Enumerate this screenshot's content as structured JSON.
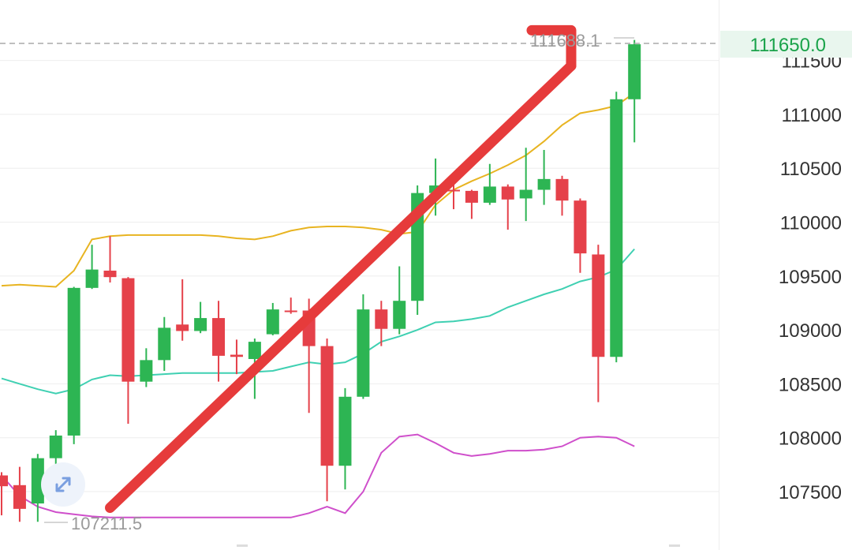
{
  "chart_data": {
    "type": "candlestick",
    "y_ticks": [
      107500,
      108000,
      108500,
      109000,
      109500,
      110000,
      110500,
      111000,
      111500
    ],
    "y_tick_labels": [
      "107500",
      "108000",
      "108500",
      "109000",
      "109500",
      "110000",
      "110500",
      "111000",
      "111500"
    ],
    "ylim": [
      107000,
      112000
    ],
    "current_price": 111650.0,
    "current_price_label": "111650.0",
    "high_marker": 111688.1,
    "high_marker_label": "111688.1",
    "low_marker": 107211.5,
    "low_marker_label": "107211.5",
    "grid": true,
    "colors": {
      "up": "#2db553",
      "down": "#e5414a",
      "upper_band": "#e8b421",
      "middle_band": "#3fd0b2",
      "lower_band": "#cf4fcb",
      "arrow": "#e63b3b",
      "current_label": "#1aa34a"
    },
    "candles": [
      {
        "open": 107650,
        "close": 107550,
        "high": 107680,
        "low": 107280,
        "dir": "down"
      },
      {
        "open": 107560,
        "close": 107340,
        "high": 107730,
        "low": 107220,
        "dir": "down"
      },
      {
        "open": 107390,
        "close": 107810,
        "high": 107850,
        "low": 107220,
        "dir": "up"
      },
      {
        "open": 107810,
        "close": 108020,
        "high": 108070,
        "low": 107530,
        "dir": "up"
      },
      {
        "open": 108020,
        "close": 109390,
        "high": 109400,
        "low": 107940,
        "dir": "up"
      },
      {
        "open": 109390,
        "close": 109560,
        "high": 109790,
        "low": 109380,
        "dir": "up"
      },
      {
        "open": 109550,
        "close": 109490,
        "high": 109870,
        "low": 109440,
        "dir": "down"
      },
      {
        "open": 109480,
        "close": 108520,
        "high": 109490,
        "low": 108130,
        "dir": "down"
      },
      {
        "open": 108520,
        "close": 108720,
        "high": 108830,
        "low": 108470,
        "dir": "up"
      },
      {
        "open": 108720,
        "close": 109020,
        "high": 109120,
        "low": 108620,
        "dir": "up"
      },
      {
        "open": 109050,
        "close": 108990,
        "high": 109470,
        "low": 108900,
        "dir": "down"
      },
      {
        "open": 108990,
        "close": 109110,
        "high": 109260,
        "low": 108970,
        "dir": "up"
      },
      {
        "open": 109110,
        "close": 108760,
        "high": 109270,
        "low": 108520,
        "dir": "down"
      },
      {
        "open": 108770,
        "close": 108750,
        "high": 108910,
        "low": 108590,
        "dir": "down"
      },
      {
        "open": 108730,
        "close": 108890,
        "high": 108920,
        "low": 108360,
        "dir": "up"
      },
      {
        "open": 108960,
        "close": 109190,
        "high": 109250,
        "low": 108950,
        "dir": "up"
      },
      {
        "open": 109180,
        "close": 109170,
        "high": 109300,
        "low": 109150,
        "dir": "down"
      },
      {
        "open": 109180,
        "close": 108850,
        "high": 109290,
        "low": 108230,
        "dir": "down"
      },
      {
        "open": 108850,
        "close": 107740,
        "high": 108920,
        "low": 107410,
        "dir": "down"
      },
      {
        "open": 107740,
        "close": 108380,
        "high": 108460,
        "low": 107520,
        "dir": "up"
      },
      {
        "open": 108380,
        "close": 109190,
        "high": 109330,
        "low": 108360,
        "dir": "up"
      },
      {
        "open": 109190,
        "close": 109010,
        "high": 109270,
        "low": 108850,
        "dir": "down"
      },
      {
        "open": 109010,
        "close": 109270,
        "high": 109590,
        "low": 108960,
        "dir": "up"
      },
      {
        "open": 109270,
        "close": 110270,
        "high": 110340,
        "low": 109140,
        "dir": "up"
      },
      {
        "open": 110270,
        "close": 110340,
        "high": 110590,
        "low": 110060,
        "dir": "up"
      },
      {
        "open": 110300,
        "close": 110290,
        "high": 110400,
        "low": 110120,
        "dir": "down"
      },
      {
        "open": 110290,
        "close": 110180,
        "high": 110300,
        "low": 110030,
        "dir": "down"
      },
      {
        "open": 110180,
        "close": 110330,
        "high": 110540,
        "low": 110160,
        "dir": "up"
      },
      {
        "open": 110330,
        "close": 110210,
        "high": 110350,
        "low": 109930,
        "dir": "down"
      },
      {
        "open": 110220,
        "close": 110300,
        "high": 110690,
        "low": 110010,
        "dir": "up"
      },
      {
        "open": 110300,
        "close": 110400,
        "high": 110670,
        "low": 110160,
        "dir": "up"
      },
      {
        "open": 110400,
        "close": 110200,
        "high": 110430,
        "low": 110060,
        "dir": "down"
      },
      {
        "open": 110200,
        "close": 109710,
        "high": 110220,
        "low": 109530,
        "dir": "down"
      },
      {
        "open": 109700,
        "close": 108750,
        "high": 109790,
        "low": 108330,
        "dir": "down"
      },
      {
        "open": 108750,
        "close": 111140,
        "high": 111210,
        "low": 108700,
        "dir": "up"
      },
      {
        "open": 111140,
        "close": 111650,
        "high": 111690,
        "low": 110740,
        "dir": "up"
      }
    ],
    "bands": {
      "upper": [
        109410,
        109420,
        109410,
        109400,
        109550,
        109840,
        109870,
        109880,
        109880,
        109880,
        109880,
        109880,
        109870,
        109850,
        109840,
        109870,
        109920,
        109950,
        109960,
        109960,
        109950,
        109930,
        109890,
        109910,
        110160,
        110300,
        110380,
        110450,
        110530,
        110620,
        110750,
        110900,
        111010,
        111040,
        111080,
        111200
      ],
      "middle": [
        108550,
        108500,
        108450,
        108410,
        108450,
        108540,
        108580,
        108570,
        108580,
        108590,
        108600,
        108600,
        108600,
        108600,
        108610,
        108620,
        108660,
        108700,
        108680,
        108700,
        108780,
        108890,
        108940,
        109000,
        109070,
        109080,
        109100,
        109130,
        109210,
        109270,
        109330,
        109380,
        109450,
        109490,
        109560,
        109750
      ],
      "lower": [
        107650,
        107460,
        107360,
        107310,
        107290,
        107270,
        107260,
        107260,
        107260,
        107260,
        107260,
        107260,
        107260,
        107260,
        107260,
        107260,
        107260,
        107300,
        107360,
        107300,
        107500,
        107860,
        108010,
        108030,
        107950,
        107860,
        107830,
        107850,
        107880,
        107880,
        107890,
        107920,
        108000,
        108010,
        108000,
        107920
      ]
    },
    "trend_arrow": {
      "from": {
        "candle_index": 6.0,
        "price": 107350
      },
      "to": {
        "candle_index": 31.5,
        "price": 111450
      }
    }
  }
}
